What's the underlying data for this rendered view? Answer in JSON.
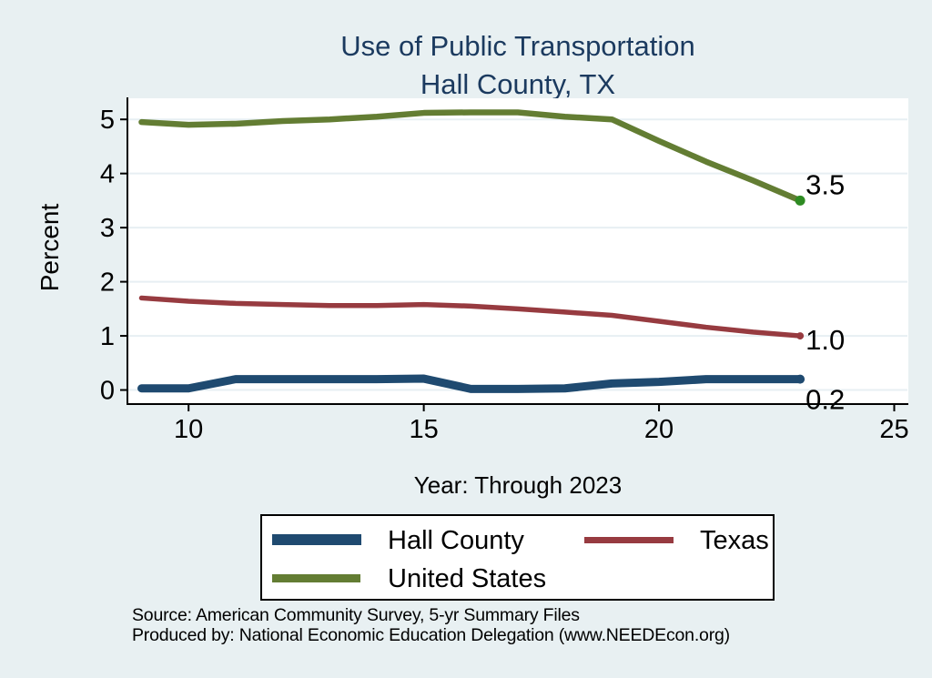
{
  "title": {
    "line1": "Use of Public Transportation",
    "line2": "Hall County, TX",
    "color": "#1b3a5f"
  },
  "axes": {
    "ylabel": "Percent",
    "xlabel": "Year: Through 2023"
  },
  "legend": {
    "items": [
      {
        "label": "Hall County"
      },
      {
        "label": "Texas"
      },
      {
        "label": "United States"
      }
    ]
  },
  "source": {
    "line1": "Source: American Community Survey, 5-yr Summary Files",
    "line2": "Produced by: National Economic Education Delegation (www.NEEDEcon.org)"
  },
  "colors": {
    "page_background": "#e8f0f2",
    "plot_background": "#ffffff",
    "gridline": "#e7eff3",
    "axis": "#000000",
    "tick_label": "#000000"
  },
  "chart_data": {
    "type": "line",
    "title": "Use of Public Transportation",
    "subtitle": "Hall County, TX",
    "xlabel": "Year: Through 2023",
    "ylabel": "Percent",
    "grid": true,
    "legend_position": "bottom",
    "x": [
      2009,
      2010,
      2011,
      2012,
      2013,
      2014,
      2015,
      2016,
      2017,
      2018,
      2019,
      2020,
      2021,
      2022,
      2023
    ],
    "x_tick_values": [
      2010,
      2015,
      2020,
      2025
    ],
    "x_tick_labels": [
      "10",
      "15",
      "20",
      "25"
    ],
    "y_tick_values": [
      0,
      1,
      2,
      3,
      4,
      5
    ],
    "y_tick_labels": [
      "0",
      "1",
      "2",
      "3",
      "4",
      "5"
    ],
    "xlim": [
      2008.7,
      2025.3
    ],
    "ylim": [
      -0.26,
      5.39
    ],
    "series": [
      {
        "name": "United States",
        "color": "#637d33",
        "line_width": 6.5,
        "end_dot_color": "#2e8b22",
        "end_dot_radius": 5.5,
        "end_label": "3.5",
        "end_label_dy": -7,
        "values": [
          4.95,
          4.9,
          4.92,
          4.97,
          5.0,
          5.05,
          5.12,
          5.13,
          5.13,
          5.05,
          5.0,
          4.6,
          4.22,
          3.87,
          3.5
        ]
      },
      {
        "name": "Texas",
        "color": "#973b40",
        "line_width": 5.5,
        "end_dot_color": "#973b40",
        "end_dot_radius": 4,
        "end_label": "1.0",
        "end_label_dy": 15,
        "values": [
          1.7,
          1.64,
          1.6,
          1.58,
          1.56,
          1.56,
          1.58,
          1.55,
          1.5,
          1.44,
          1.38,
          1.27,
          1.16,
          1.07,
          1.0
        ]
      },
      {
        "name": "Hall County",
        "color": "#1f4a70",
        "line_width": 9,
        "end_dot_color": "#1f4a70",
        "end_dot_radius": 5,
        "end_label": "0.2",
        "end_label_dy": 33,
        "values": [
          0.03,
          0.03,
          0.2,
          0.2,
          0.2,
          0.2,
          0.21,
          0.02,
          0.02,
          0.03,
          0.12,
          0.15,
          0.2,
          0.2,
          0.2
        ]
      }
    ]
  }
}
